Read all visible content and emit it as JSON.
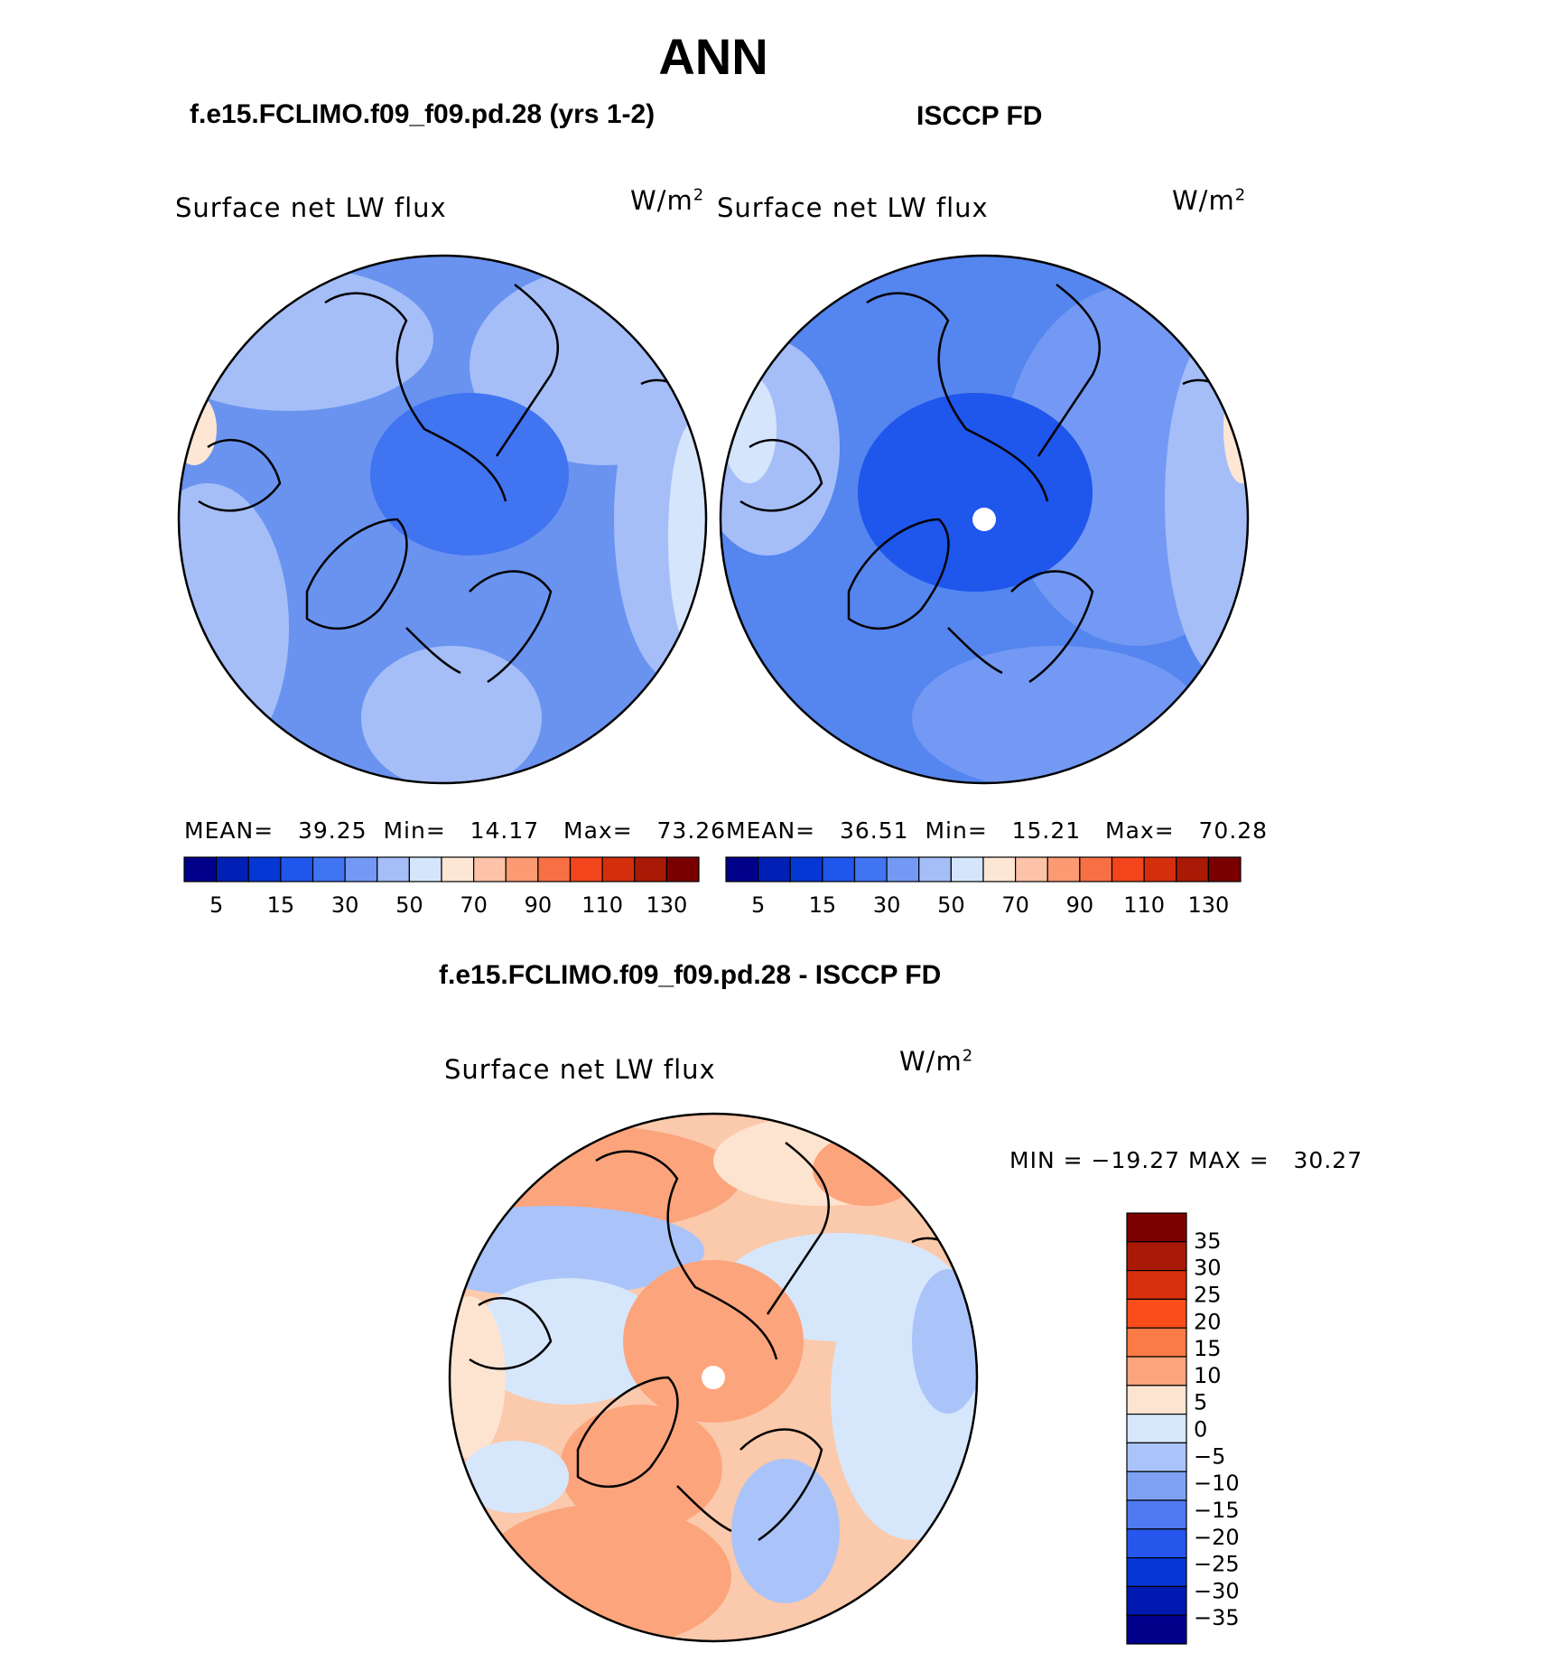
{
  "title": "ANN",
  "panels": [
    {
      "id": "model",
      "heading": "f.e15.FCLIMO.f09_f09.pd.28 (yrs 1-2)",
      "variable": "Surface net LW flux",
      "units_base": "W/m",
      "units_exp": "2",
      "stats": {
        "mean_label": "MEAN=",
        "mean": "39.25",
        "min_label": "Min=",
        "min": "14.17",
        "max_label": "Max=",
        "max": "73.26"
      },
      "fill": "#6a93f0",
      "pole_hole": false
    },
    {
      "id": "obs",
      "heading": "ISCCP FD",
      "variable": "Surface net LW flux",
      "units_base": "W/m",
      "units_exp": "2",
      "stats": {
        "mean_label": "MEAN=",
        "mean": "36.51",
        "min_label": "Min=",
        "min": "15.21",
        "max_label": "Max=",
        "max": "70.28"
      },
      "fill": "#5585ee",
      "pole_hole": true
    }
  ],
  "colorbar_horizontal": {
    "colors": [
      "#00008b",
      "#0020b5",
      "#0537d4",
      "#1f56ec",
      "#4174f0",
      "#7399f4",
      "#a5bef8",
      "#d5e5fb",
      "#fde6d4",
      "#fcc3a8",
      "#fb9a73",
      "#f96f45",
      "#f2451c",
      "#d42f0d",
      "#a81a06",
      "#7a0000"
    ],
    "labels": [
      "5",
      "15",
      "30",
      "50",
      "70",
      "90",
      "110",
      "130"
    ]
  },
  "difference": {
    "heading": "f.e15.FCLIMO.f09_f09.pd.28 - ISCCP FD",
    "variable": "Surface net LW flux",
    "units_base": "W/m",
    "units_exp": "2",
    "minmax": {
      "min_label": "MIN =",
      "min": "−19.27",
      "max_label": "MAX =",
      "max": "30.27"
    },
    "colorbar": {
      "colors": [
        "#7d0000",
        "#a81a06",
        "#d7300d",
        "#fa4d1c",
        "#fb7a45",
        "#fca47c",
        "#fde4d0",
        "#d6e7fb",
        "#aac4f9",
        "#7ea1f4",
        "#4f7af0",
        "#2756ec",
        "#0636d4",
        "#0019b0",
        "#00008b"
      ],
      "labels": [
        "35",
        "30",
        "25",
        "20",
        "15",
        "10",
        "5",
        "0",
        "−5",
        "−10",
        "−15",
        "−20",
        "−25",
        "−30",
        "−35"
      ]
    },
    "fill": "#fbc9ab",
    "pole_hole": true
  }
}
